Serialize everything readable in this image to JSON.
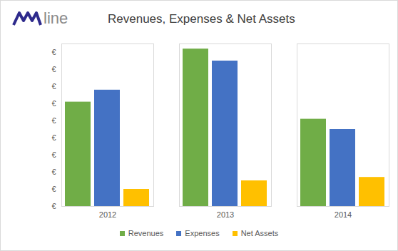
{
  "chart_data": {
    "type": "bar",
    "title": "Revenues, Expenses & Net Assets",
    "logo": "line",
    "categories": [
      "2012",
      "2013",
      "2014"
    ],
    "series": [
      {
        "name": "Revenues",
        "color": "#70ad47",
        "values": [
          6.1,
          9.2,
          5.1
        ]
      },
      {
        "name": "Expenses",
        "color": "#4472c4",
        "values": [
          6.8,
          8.5,
          4.5
        ]
      },
      {
        "name": "Net Assets",
        "color": "#ffc000",
        "values": [
          1.0,
          1.5,
          1.7
        ]
      }
    ],
    "ylim": [
      0,
      9.5
    ],
    "yticks": [
      {
        "value": 0,
        "label": "€"
      },
      {
        "value": 1,
        "label": "€"
      },
      {
        "value": 2,
        "label": "€"
      },
      {
        "value": 3,
        "label": "€"
      },
      {
        "value": 4,
        "label": "€"
      },
      {
        "value": 5,
        "label": "€"
      },
      {
        "value": 6,
        "label": "€"
      },
      {
        "value": 7,
        "label": "€"
      },
      {
        "value": 8,
        "label": "€"
      },
      {
        "value": 9,
        "label": "€"
      }
    ],
    "grid": false,
    "legend": "bottom"
  }
}
